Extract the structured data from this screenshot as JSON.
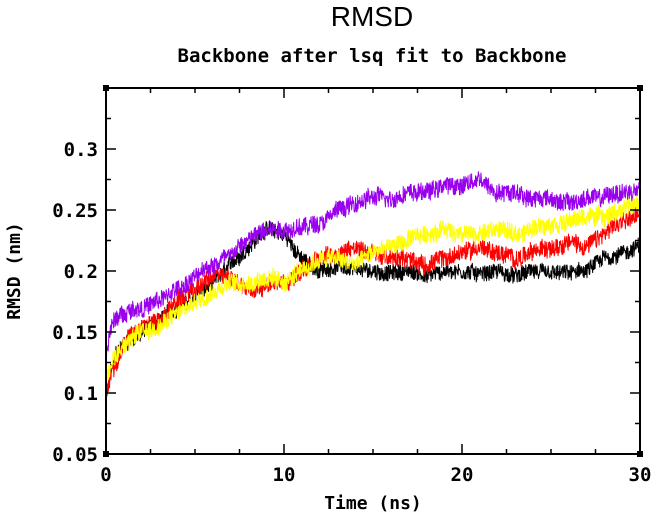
{
  "chart_data": {
    "type": "line",
    "title": "RMSD",
    "subtitle": "Backbone after lsq fit to Backbone",
    "xlabel": "Time (ns)",
    "ylabel": "RMSD (nm)",
    "xlim": [
      0,
      30
    ],
    "ylim": [
      0.05,
      0.35
    ],
    "xticks": [
      0,
      10,
      20,
      30
    ],
    "xtick_labels": [
      "0",
      "10",
      "20",
      "30"
    ],
    "yticks": [
      0.05,
      0.1,
      0.15,
      0.2,
      0.25,
      0.3
    ],
    "ytick_labels": [
      "0.05",
      "0.1",
      "0.15",
      "0.2",
      "0.25",
      "0.3"
    ],
    "grid": false,
    "legend": "none",
    "series": [
      {
        "color": "#000000",
        "x": [
          0,
          0.2,
          0.5,
          1,
          1.5,
          2,
          3,
          4,
          5,
          6,
          7,
          8,
          9,
          10,
          11,
          12,
          13,
          14,
          15,
          16,
          17,
          18,
          19,
          20,
          21,
          22,
          23,
          24,
          25,
          26,
          27,
          28,
          29,
          30
        ],
        "values": [
          0.09,
          0.115,
          0.13,
          0.14,
          0.145,
          0.15,
          0.16,
          0.17,
          0.18,
          0.19,
          0.205,
          0.22,
          0.235,
          0.23,
          0.21,
          0.2,
          0.205,
          0.2,
          0.2,
          0.198,
          0.2,
          0.196,
          0.2,
          0.2,
          0.198,
          0.2,
          0.195,
          0.2,
          0.197,
          0.198,
          0.2,
          0.21,
          0.215,
          0.22
        ],
        "noise": 0.008
      },
      {
        "color": "#ff0000",
        "x": [
          0,
          0.2,
          0.5,
          1,
          1.5,
          2,
          3,
          4,
          5,
          6,
          7,
          8,
          9,
          10,
          11,
          12,
          13,
          14,
          15,
          16,
          17,
          18,
          19,
          20,
          21,
          22,
          23,
          24,
          25,
          26,
          27,
          28,
          29,
          30
        ],
        "values": [
          0.1,
          0.11,
          0.125,
          0.14,
          0.15,
          0.155,
          0.16,
          0.175,
          0.185,
          0.195,
          0.195,
          0.185,
          0.19,
          0.19,
          0.2,
          0.21,
          0.215,
          0.22,
          0.215,
          0.21,
          0.21,
          0.205,
          0.21,
          0.215,
          0.22,
          0.215,
          0.21,
          0.215,
          0.22,
          0.225,
          0.22,
          0.23,
          0.24,
          0.25
        ],
        "noise": 0.009
      },
      {
        "color": "#ffff00",
        "x": [
          0,
          0.2,
          0.5,
          1,
          1.5,
          2,
          3,
          4,
          5,
          6,
          7,
          8,
          9,
          10,
          11,
          12,
          13,
          14,
          15,
          16,
          17,
          18,
          19,
          20,
          21,
          22,
          23,
          24,
          25,
          26,
          27,
          28,
          29,
          30
        ],
        "values": [
          0.11,
          0.12,
          0.13,
          0.14,
          0.145,
          0.15,
          0.155,
          0.165,
          0.175,
          0.185,
          0.19,
          0.19,
          0.195,
          0.19,
          0.2,
          0.21,
          0.21,
          0.205,
          0.215,
          0.22,
          0.225,
          0.23,
          0.235,
          0.23,
          0.23,
          0.235,
          0.23,
          0.235,
          0.24,
          0.24,
          0.245,
          0.245,
          0.25,
          0.255
        ],
        "noise": 0.009
      },
      {
        "color": "#9900ee",
        "x": [
          0,
          0.2,
          0.5,
          1,
          1.5,
          2,
          3,
          4,
          5,
          6,
          7,
          8,
          9,
          10,
          11,
          12,
          13,
          14,
          15,
          16,
          17,
          18,
          19,
          20,
          21,
          22,
          23,
          24,
          25,
          26,
          27,
          28,
          29,
          30
        ],
        "values": [
          0.13,
          0.15,
          0.16,
          0.165,
          0.17,
          0.17,
          0.175,
          0.185,
          0.195,
          0.205,
          0.215,
          0.225,
          0.235,
          0.235,
          0.235,
          0.24,
          0.25,
          0.255,
          0.26,
          0.26,
          0.265,
          0.265,
          0.27,
          0.27,
          0.275,
          0.265,
          0.265,
          0.26,
          0.26,
          0.255,
          0.26,
          0.26,
          0.265,
          0.265
        ],
        "noise": 0.009
      }
    ]
  }
}
